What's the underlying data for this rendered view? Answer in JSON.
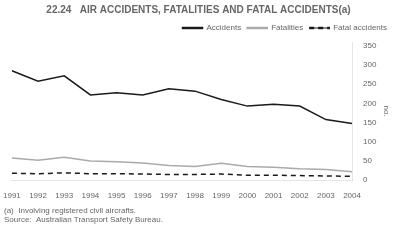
{
  "chart_data": {
    "type": "line",
    "title": "22.24   AIR ACCIDENTS, FATALITIES AND FATAL ACCIDENTS(a)",
    "ylabel": "no.",
    "annotations": [
      "(a)  Involving registered civil aircrafts.",
      "Source:  Australian Transport Safety Bureau."
    ],
    "x": [
      1991,
      1992,
      1993,
      1994,
      1995,
      1996,
      1997,
      1998,
      1999,
      2000,
      2001,
      2002,
      2003,
      2004
    ],
    "xlim": [
      1991,
      2004
    ],
    "xticks": [
      1991,
      1992,
      1993,
      1994,
      1995,
      1996,
      1997,
      1998,
      1999,
      2000,
      2001,
      2002,
      2003,
      2004
    ],
    "ylim": [
      0,
      360
    ],
    "yticks": [
      0,
      50,
      100,
      150,
      200,
      250,
      300,
      350
    ],
    "series": [
      {
        "name": "Accidents",
        "color": "#1a1a1a",
        "line_style": "solid",
        "values": [
          285,
          258,
          272,
          222,
          228,
          222,
          238,
          232,
          210,
          193,
          198,
          193,
          158,
          148
        ]
      },
      {
        "name": "Fatalities",
        "color": "#aaaaaa",
        "line_style": "solid",
        "values": [
          58,
          52,
          60,
          50,
          48,
          45,
          38,
          36,
          44,
          36,
          34,
          30,
          28,
          22
        ]
      },
      {
        "name": "Fatal accidents",
        "color": "#1a1a1a",
        "line_style": "dashed",
        "values": [
          18,
          17,
          19,
          17,
          17,
          16,
          15,
          15,
          16,
          13,
          13,
          12,
          11,
          10
        ]
      }
    ],
    "grid": false,
    "legend": "upper right"
  }
}
